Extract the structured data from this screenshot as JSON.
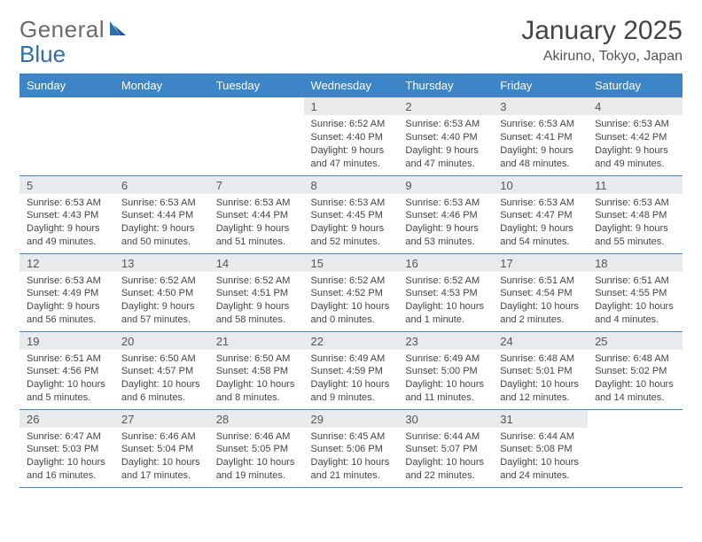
{
  "brand": {
    "part1": "General",
    "part2": "Blue"
  },
  "title": "January 2025",
  "subtitle": "Akiruno, Tokyo, Japan",
  "colors": {
    "header_bg": "#3d85c6",
    "header_text": "#ffffff",
    "daynum_bg": "#e8eaec",
    "body_text": "#444444",
    "rule": "#3d85c6",
    "logo_gray": "#6b6b6b",
    "logo_blue": "#2f6fa8"
  },
  "day_headers": [
    "Sunday",
    "Monday",
    "Tuesday",
    "Wednesday",
    "Thursday",
    "Friday",
    "Saturday"
  ],
  "weeks": [
    [
      null,
      null,
      null,
      {
        "n": "1",
        "sunrise": "6:52 AM",
        "sunset": "4:40 PM",
        "daylight": "9 hours and 47 minutes."
      },
      {
        "n": "2",
        "sunrise": "6:53 AM",
        "sunset": "4:40 PM",
        "daylight": "9 hours and 47 minutes."
      },
      {
        "n": "3",
        "sunrise": "6:53 AM",
        "sunset": "4:41 PM",
        "daylight": "9 hours and 48 minutes."
      },
      {
        "n": "4",
        "sunrise": "6:53 AM",
        "sunset": "4:42 PM",
        "daylight": "9 hours and 49 minutes."
      }
    ],
    [
      {
        "n": "5",
        "sunrise": "6:53 AM",
        "sunset": "4:43 PM",
        "daylight": "9 hours and 49 minutes."
      },
      {
        "n": "6",
        "sunrise": "6:53 AM",
        "sunset": "4:44 PM",
        "daylight": "9 hours and 50 minutes."
      },
      {
        "n": "7",
        "sunrise": "6:53 AM",
        "sunset": "4:44 PM",
        "daylight": "9 hours and 51 minutes."
      },
      {
        "n": "8",
        "sunrise": "6:53 AM",
        "sunset": "4:45 PM",
        "daylight": "9 hours and 52 minutes."
      },
      {
        "n": "9",
        "sunrise": "6:53 AM",
        "sunset": "4:46 PM",
        "daylight": "9 hours and 53 minutes."
      },
      {
        "n": "10",
        "sunrise": "6:53 AM",
        "sunset": "4:47 PM",
        "daylight": "9 hours and 54 minutes."
      },
      {
        "n": "11",
        "sunrise": "6:53 AM",
        "sunset": "4:48 PM",
        "daylight": "9 hours and 55 minutes."
      }
    ],
    [
      {
        "n": "12",
        "sunrise": "6:53 AM",
        "sunset": "4:49 PM",
        "daylight": "9 hours and 56 minutes."
      },
      {
        "n": "13",
        "sunrise": "6:52 AM",
        "sunset": "4:50 PM",
        "daylight": "9 hours and 57 minutes."
      },
      {
        "n": "14",
        "sunrise": "6:52 AM",
        "sunset": "4:51 PM",
        "daylight": "9 hours and 58 minutes."
      },
      {
        "n": "15",
        "sunrise": "6:52 AM",
        "sunset": "4:52 PM",
        "daylight": "10 hours and 0 minutes."
      },
      {
        "n": "16",
        "sunrise": "6:52 AM",
        "sunset": "4:53 PM",
        "daylight": "10 hours and 1 minute."
      },
      {
        "n": "17",
        "sunrise": "6:51 AM",
        "sunset": "4:54 PM",
        "daylight": "10 hours and 2 minutes."
      },
      {
        "n": "18",
        "sunrise": "6:51 AM",
        "sunset": "4:55 PM",
        "daylight": "10 hours and 4 minutes."
      }
    ],
    [
      {
        "n": "19",
        "sunrise": "6:51 AM",
        "sunset": "4:56 PM",
        "daylight": "10 hours and 5 minutes."
      },
      {
        "n": "20",
        "sunrise": "6:50 AM",
        "sunset": "4:57 PM",
        "daylight": "10 hours and 6 minutes."
      },
      {
        "n": "21",
        "sunrise": "6:50 AM",
        "sunset": "4:58 PM",
        "daylight": "10 hours and 8 minutes."
      },
      {
        "n": "22",
        "sunrise": "6:49 AM",
        "sunset": "4:59 PM",
        "daylight": "10 hours and 9 minutes."
      },
      {
        "n": "23",
        "sunrise": "6:49 AM",
        "sunset": "5:00 PM",
        "daylight": "10 hours and 11 minutes."
      },
      {
        "n": "24",
        "sunrise": "6:48 AM",
        "sunset": "5:01 PM",
        "daylight": "10 hours and 12 minutes."
      },
      {
        "n": "25",
        "sunrise": "6:48 AM",
        "sunset": "5:02 PM",
        "daylight": "10 hours and 14 minutes."
      }
    ],
    [
      {
        "n": "26",
        "sunrise": "6:47 AM",
        "sunset": "5:03 PM",
        "daylight": "10 hours and 16 minutes."
      },
      {
        "n": "27",
        "sunrise": "6:46 AM",
        "sunset": "5:04 PM",
        "daylight": "10 hours and 17 minutes."
      },
      {
        "n": "28",
        "sunrise": "6:46 AM",
        "sunset": "5:05 PM",
        "daylight": "10 hours and 19 minutes."
      },
      {
        "n": "29",
        "sunrise": "6:45 AM",
        "sunset": "5:06 PM",
        "daylight": "10 hours and 21 minutes."
      },
      {
        "n": "30",
        "sunrise": "6:44 AM",
        "sunset": "5:07 PM",
        "daylight": "10 hours and 22 minutes."
      },
      {
        "n": "31",
        "sunrise": "6:44 AM",
        "sunset": "5:08 PM",
        "daylight": "10 hours and 24 minutes."
      },
      null
    ]
  ],
  "labels": {
    "sunrise": "Sunrise:",
    "sunset": "Sunset:",
    "daylight": "Daylight:"
  }
}
